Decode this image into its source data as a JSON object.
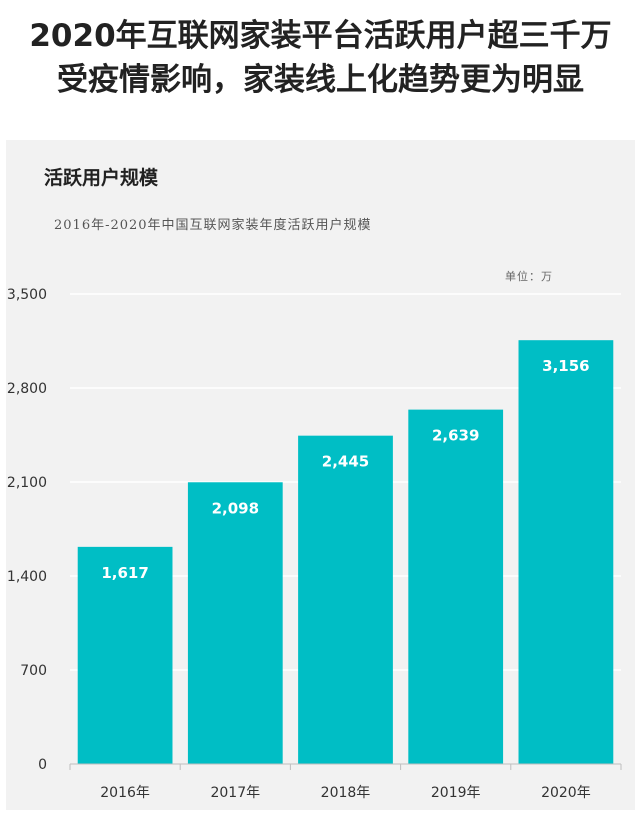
{
  "headline": {
    "line1": "2020年互联网家装平台活跃用户超三千万",
    "line2": "受疫情影响，家装线上化趋势更为明显"
  },
  "section_title": "活跃用户规模",
  "chart_data": {
    "type": "bar",
    "title": "2016年-2020年中国互联网家装年度活跃用户规模",
    "unit": "单位：万",
    "categories": [
      "2016年",
      "2017年",
      "2018年",
      "2019年",
      "2020年"
    ],
    "values": [
      1617,
      2098,
      2445,
      2639,
      3156
    ],
    "value_labels": [
      "1,617",
      "2,098",
      "2,445",
      "2,639",
      "3,156"
    ],
    "ylim": [
      0,
      3500
    ],
    "yticks": [
      0,
      700,
      1400,
      2100,
      2800,
      3500
    ],
    "ytick_labels": [
      "0",
      "700",
      "1,400",
      "2,100",
      "2,800",
      "3,500"
    ],
    "grid": true,
    "legend": "none",
    "bar_color": "#00bec5",
    "label_color": "#ffffff"
  }
}
